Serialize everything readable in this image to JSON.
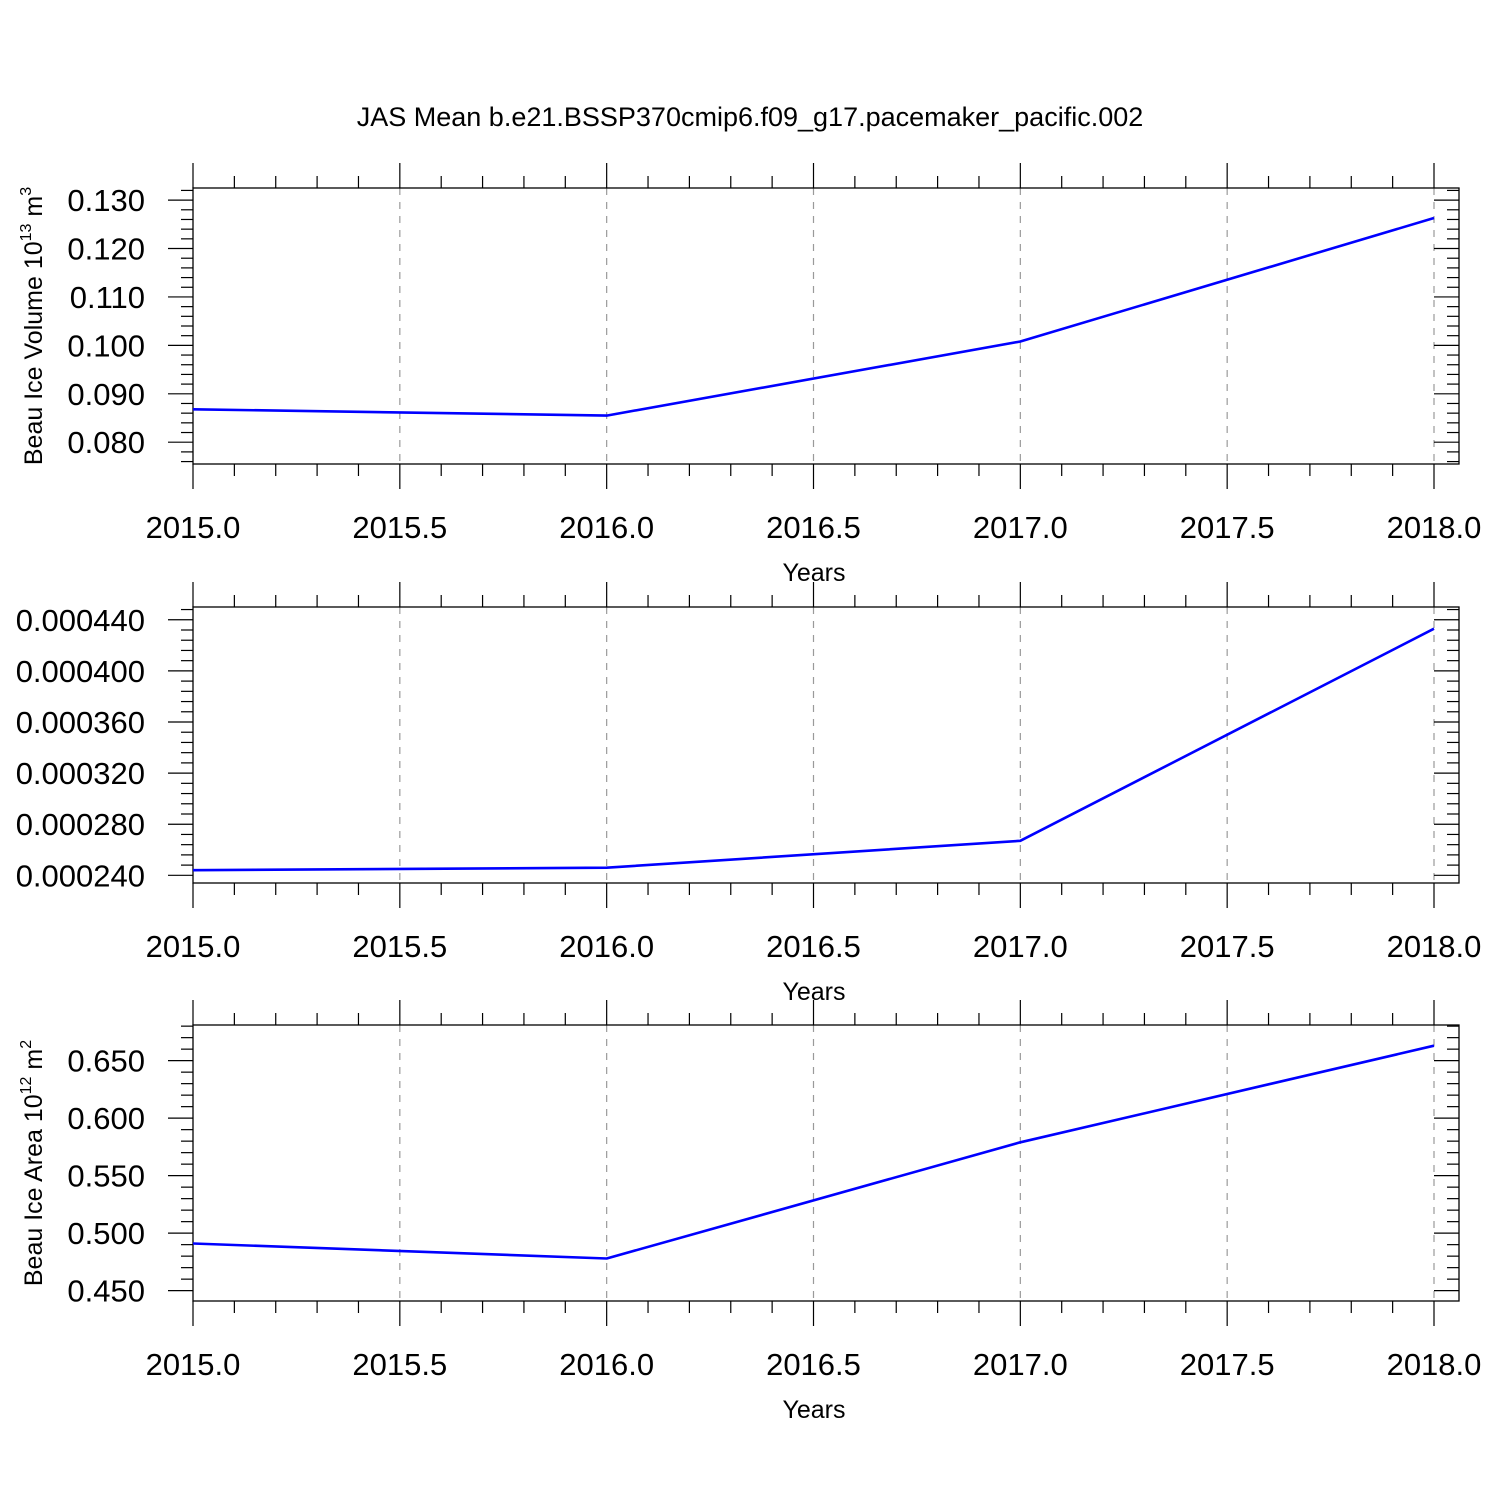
{
  "figure_title": "JAS Mean b.e21.BSSP370cmip6.f09_g17.pacemaker_pacific.002",
  "chart_data": [
    {
      "type": "line",
      "title": "",
      "xlabel": "Years",
      "ylabel": "Beau Ice Volume 10",
      "ylabel_exp": "13",
      "ylabel_unit": " m",
      "ylabel_unit_exp": "3",
      "xlim": [
        2015.0,
        2018.0
      ],
      "ylim": [
        0.0755,
        0.1325
      ],
      "x_ticks": [
        2015.0,
        2015.5,
        2016.0,
        2016.5,
        2017.0,
        2017.5,
        2018.0
      ],
      "x_tick_labels": [
        "2015.0",
        "2015.5",
        "2016.0",
        "2016.5",
        "2017.0",
        "2017.5",
        "2018.0"
      ],
      "y_ticks": [
        0.08,
        0.09,
        0.1,
        0.11,
        0.12,
        0.13
      ],
      "y_tick_labels": [
        "0.080",
        "0.090",
        "0.100",
        "0.110",
        "0.120",
        "0.130"
      ],
      "y_minor_step": 0.002,
      "grid": "vertical dashed at x major ticks",
      "series": [
        {
          "x": [
            2015,
            2016,
            2017,
            2018
          ],
          "values": [
            0.0868,
            0.0855,
            0.1008,
            0.1263
          ],
          "color": "#0000ff"
        }
      ]
    },
    {
      "type": "line",
      "title": "",
      "xlabel": "Years",
      "ylabel": "",
      "xlim": [
        2015.0,
        2018.0
      ],
      "ylim": [
        0.000234,
        0.00045
      ],
      "x_ticks": [
        2015.0,
        2015.5,
        2016.0,
        2016.5,
        2017.0,
        2017.5,
        2018.0
      ],
      "x_tick_labels": [
        "2015.0",
        "2015.5",
        "2016.0",
        "2016.5",
        "2017.0",
        "2017.5",
        "2018.0"
      ],
      "y_ticks": [
        0.00024,
        0.00028,
        0.00032,
        0.00036,
        0.0004,
        0.00044
      ],
      "y_tick_labels": [
        "0.000240",
        "0.000280",
        "0.000320",
        "0.000360",
        "0.000400",
        "0.000440"
      ],
      "y_minor_step": 8e-06,
      "grid": "vertical dashed at x major ticks",
      "series": [
        {
          "x": [
            2015,
            2016,
            2017,
            2018
          ],
          "values": [
            0.000244,
            0.000246,
            0.000267,
            0.000433
          ],
          "color": "#0000ff"
        }
      ]
    },
    {
      "type": "line",
      "title": "",
      "xlabel": "Years",
      "ylabel": "Beau Ice Area 10",
      "ylabel_exp": "12",
      "ylabel_unit": " m",
      "ylabel_unit_exp": "2",
      "xlim": [
        2015.0,
        2018.0
      ],
      "ylim": [
        0.441,
        0.681
      ],
      "x_ticks": [
        2015.0,
        2015.5,
        2016.0,
        2016.5,
        2017.0,
        2017.5,
        2018.0
      ],
      "x_tick_labels": [
        "2015.0",
        "2015.5",
        "2016.0",
        "2016.5",
        "2017.0",
        "2017.5",
        "2018.0"
      ],
      "y_ticks": [
        0.45,
        0.5,
        0.55,
        0.6,
        0.65
      ],
      "y_tick_labels": [
        "0.450",
        "0.500",
        "0.550",
        "0.600",
        "0.650"
      ],
      "y_minor_step": 0.01,
      "grid": "vertical dashed at x major ticks",
      "series": [
        {
          "x": [
            2015,
            2016,
            2017,
            2018
          ],
          "values": [
            0.491,
            0.478,
            0.579,
            0.663
          ],
          "color": "#0000ff"
        }
      ]
    }
  ]
}
